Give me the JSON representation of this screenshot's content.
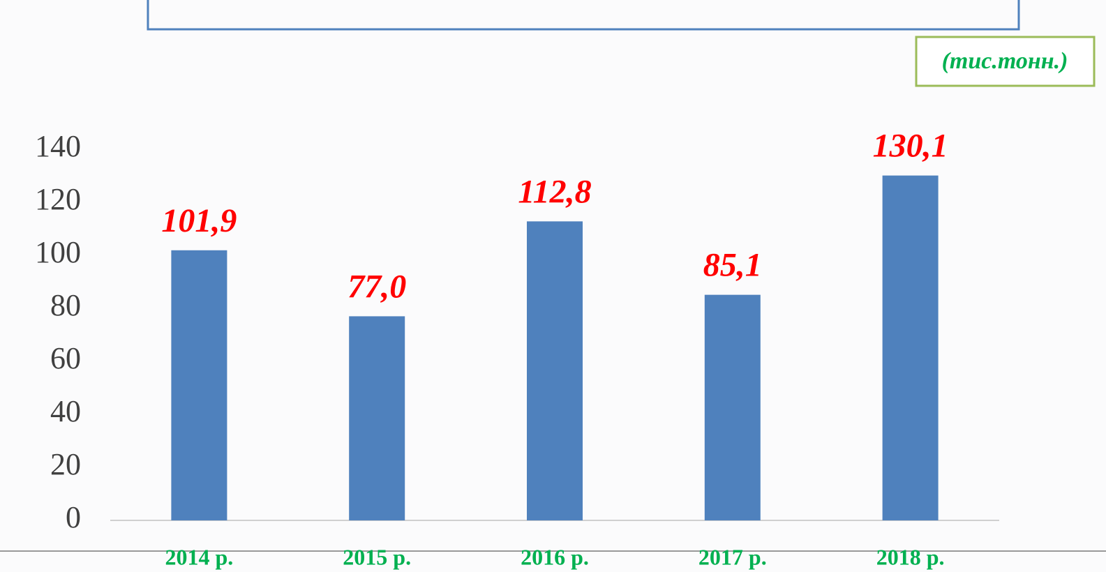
{
  "chart_data": {
    "type": "bar",
    "unit_label": "(тис.тонн.)",
    "categories": [
      "2014 р.",
      "2015 р.",
      "2016 р.",
      "2017 р.",
      "2018 р."
    ],
    "values": [
      101.9,
      77.0,
      112.8,
      85.1,
      130.1
    ],
    "value_labels": [
      "101,9",
      "77,0",
      "112,8",
      "85,1",
      "130,1"
    ],
    "color": "#4f81bd",
    "label_color": "#ff0000",
    "category_color": "#00b050",
    "ylim": [
      0,
      140
    ],
    "yticks": [
      0,
      20,
      40,
      60,
      80,
      100,
      120,
      140
    ],
    "grid": false
  }
}
